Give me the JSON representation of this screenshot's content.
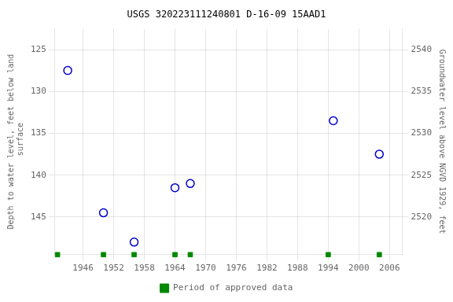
{
  "chart_data": {
    "type": "scatter",
    "title": "USGS 320223111240801 D-16-09 15AAD1",
    "ylabel": "Depth to water level, feet below land\n surface",
    "y2label": "Groundwater level above NGVD 1929, feet",
    "series": [
      {
        "x": [
          1943,
          1950,
          1956,
          1964,
          1967,
          1995,
          2004
        ],
        "values": [
          127.5,
          144.5,
          148.0,
          141.5,
          141.0,
          133.5,
          137.5
        ],
        "color": "#0000cc",
        "marker": "open_circle"
      },
      {
        "name": "Period of approved data",
        "x": [
          1941,
          1950,
          1956,
          1964,
          1967,
          1994,
          2004
        ],
        "color": "#008800",
        "marker": "square"
      }
    ],
    "xlim": [
      1940.5,
      2008.5
    ],
    "xticks": [
      1946,
      1952,
      1958,
      1964,
      1970,
      1976,
      1982,
      1988,
      1994,
      2000,
      2006
    ],
    "ylim": [
      149.5,
      122.5
    ],
    "yticks": [
      125,
      130,
      135,
      140,
      145
    ],
    "y2lim": [
      2515.5,
      2542.5
    ],
    "y2ticks": [
      2540,
      2535,
      2530,
      2525,
      2520
    ],
    "grid": true,
    "legend": "bottom"
  }
}
